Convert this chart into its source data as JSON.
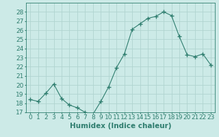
{
  "x": [
    0,
    1,
    2,
    3,
    4,
    5,
    6,
    7,
    8,
    9,
    10,
    11,
    12,
    13,
    14,
    15,
    16,
    17,
    18,
    19,
    20,
    21,
    22,
    23
  ],
  "y": [
    18.4,
    18.2,
    19.1,
    20.1,
    18.5,
    17.8,
    17.5,
    17.0,
    16.8,
    18.2,
    19.8,
    21.9,
    23.4,
    26.1,
    26.7,
    27.3,
    27.5,
    28.0,
    27.6,
    25.3,
    23.3,
    23.1,
    23.4,
    22.2
  ],
  "line_color": "#2e7d6e",
  "marker": "+",
  "marker_size": 4,
  "bg_color": "#cceae7",
  "grid_color": "#b0d4d0",
  "xlabel": "Humidex (Indice chaleur)",
  "ylim": [
    17,
    29
  ],
  "xlim": [
    -0.5,
    23.5
  ],
  "yticks": [
    17,
    18,
    19,
    20,
    21,
    22,
    23,
    24,
    25,
    26,
    27,
    28
  ],
  "xticks": [
    0,
    1,
    2,
    3,
    4,
    5,
    6,
    7,
    8,
    9,
    10,
    11,
    12,
    13,
    14,
    15,
    16,
    17,
    18,
    19,
    20,
    21,
    22,
    23
  ],
  "tick_color": "#2e7d6e",
  "label_fontsize": 6.5,
  "xlabel_fontsize": 7.5
}
